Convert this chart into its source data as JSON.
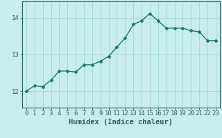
{
  "x": [
    0,
    1,
    2,
    3,
    4,
    5,
    6,
    7,
    8,
    9,
    10,
    11,
    12,
    13,
    14,
    15,
    16,
    17,
    18,
    19,
    20,
    21,
    22,
    23
  ],
  "y": [
    12.0,
    12.15,
    12.12,
    12.3,
    12.55,
    12.55,
    12.52,
    12.72,
    12.72,
    12.82,
    12.95,
    13.2,
    13.45,
    13.82,
    13.92,
    14.12,
    13.92,
    13.72,
    13.72,
    13.72,
    13.65,
    13.62,
    13.38,
    13.38
  ],
  "line_color": "#1a7a6a",
  "marker": "D",
  "marker_size": 2.5,
  "bg_color": "#c8eded",
  "grid_color": "#a0d8d8",
  "axis_color": "#2a6060",
  "xlabel": "Humidex (Indice chaleur)",
  "xlabel_fontsize": 7.5,
  "yticks": [
    12,
    13,
    14
  ],
  "xticks": [
    0,
    1,
    2,
    3,
    4,
    5,
    6,
    7,
    8,
    9,
    10,
    11,
    12,
    13,
    14,
    15,
    16,
    17,
    18,
    19,
    20,
    21,
    22,
    23
  ],
  "ylim": [
    11.55,
    14.45
  ],
  "xlim": [
    -0.5,
    23.5
  ],
  "tick_fontsize": 6.5,
  "linewidth": 1.0
}
